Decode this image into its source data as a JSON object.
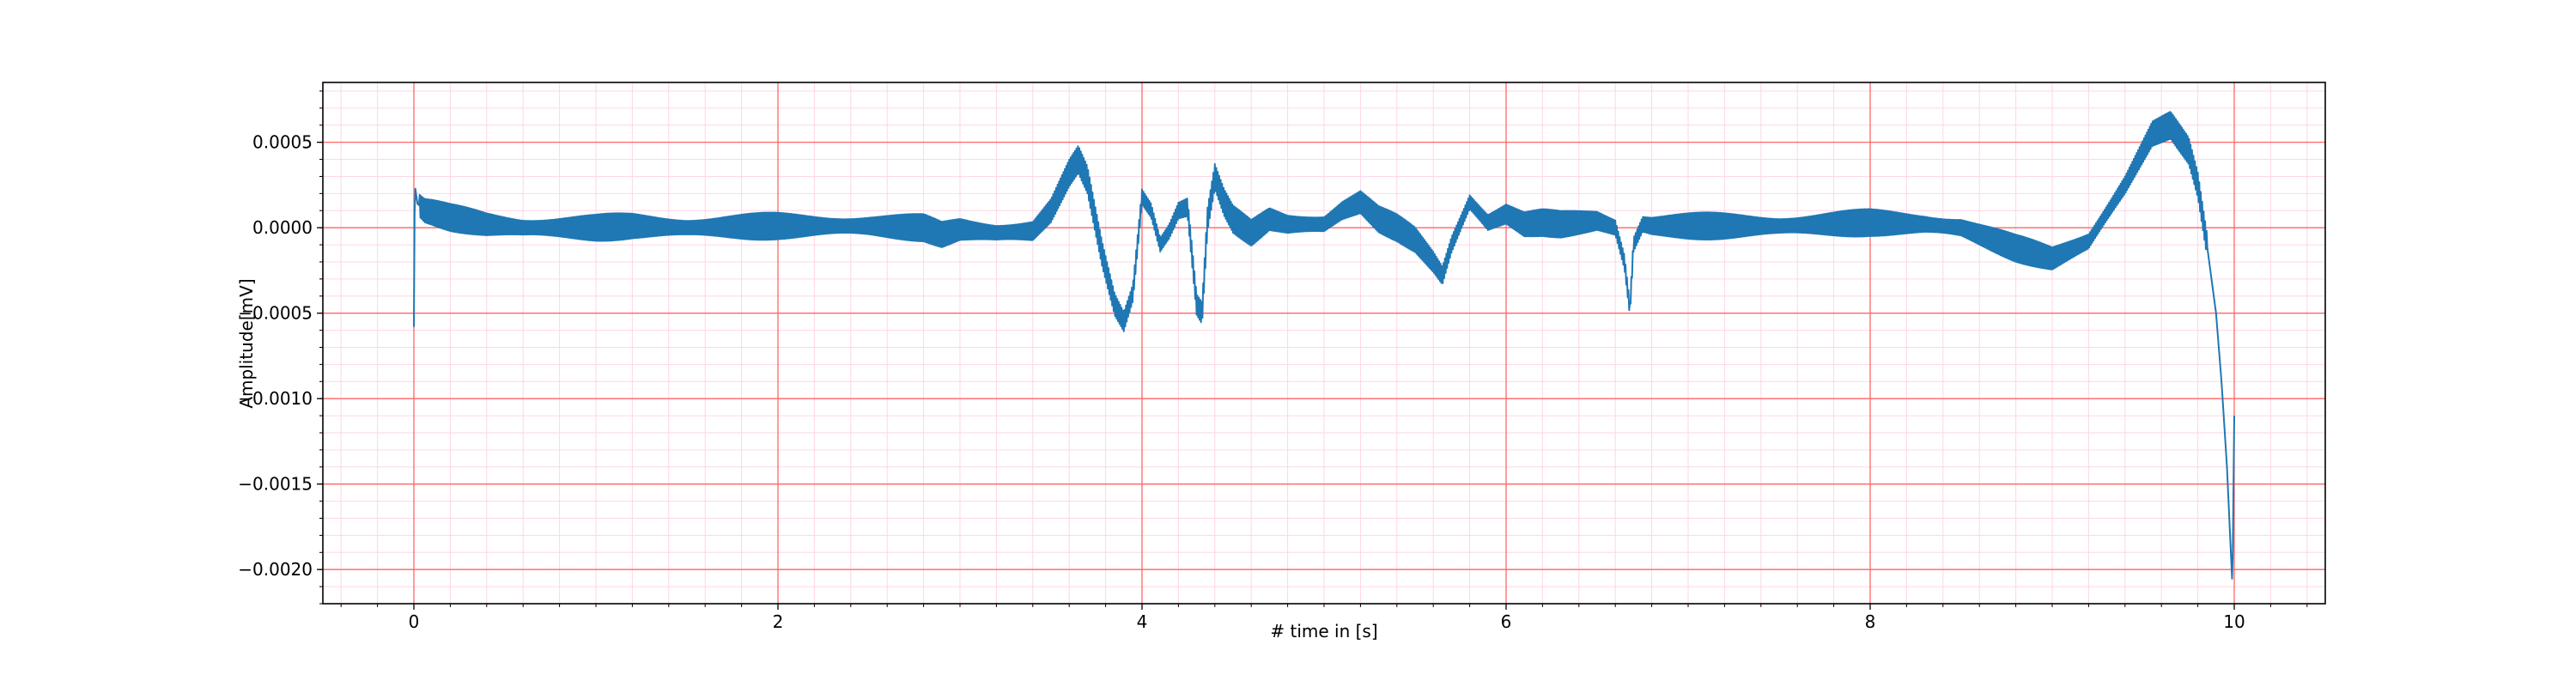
{
  "chart_data": {
    "type": "line",
    "title": "",
    "xlabel": "# time in [s]",
    "ylabel": "Amplitude[mV]",
    "xlim": [
      -0.5,
      10.5
    ],
    "ylim": [
      -0.0022,
      0.00085
    ],
    "x_ticks": [
      0,
      2,
      4,
      6,
      8,
      10
    ],
    "x_tick_labels": [
      "0",
      "2",
      "4",
      "6",
      "8",
      "10"
    ],
    "y_ticks": [
      0.0005,
      0.0,
      -0.0005,
      -0.001,
      -0.0015,
      -0.002
    ],
    "y_tick_labels": [
      "0.0005",
      "0.0000",
      "−0.0005",
      "−0.0010",
      "−0.0015",
      "−0.0020"
    ],
    "grid": {
      "major": true,
      "minor": true,
      "major_color": "#ff6666",
      "minor_color": "#ffd6e6"
    },
    "series": [
      {
        "color": "#1f77b4",
        "ripple_amplitude": 8e-05,
        "x": [
          0.0,
          0.005,
          0.02,
          0.06,
          0.1,
          0.2,
          0.4,
          0.6,
          0.8,
          1.0,
          1.2,
          1.5,
          2.0,
          2.5,
          2.8,
          2.9,
          3.0,
          3.2,
          3.4,
          3.5,
          3.6,
          3.65,
          3.7,
          3.78,
          3.85,
          3.9,
          3.95,
          4.0,
          4.05,
          4.1,
          4.15,
          4.2,
          4.25,
          4.3,
          4.33,
          4.36,
          4.4,
          4.45,
          4.5,
          4.6,
          4.7,
          4.8,
          4.9,
          5.0,
          5.1,
          5.2,
          5.3,
          5.4,
          5.5,
          5.6,
          5.65,
          5.7,
          5.8,
          5.9,
          6.0,
          6.1,
          6.2,
          6.3,
          6.5,
          6.6,
          6.65,
          6.68,
          6.7,
          6.75,
          6.8,
          7.0,
          7.5,
          8.0,
          8.3,
          8.5,
          8.8,
          9.0,
          9.2,
          9.4,
          9.55,
          9.65,
          9.75,
          9.8,
          9.85,
          9.9,
          9.93,
          9.96,
          9.99,
          10.0
        ],
        "y": [
          -0.00058,
          0.00025,
          0.00014,
          0.0001,
          9e-05,
          6e-05,
          2e-05,
          0.0,
          0.0,
          0.0,
          1e-05,
          0.0,
          1e-05,
          1e-05,
          0.0,
          -4e-05,
          -1e-05,
          -3e-05,
          -2e-05,
          0.0001,
          0.00032,
          0.0004,
          0.00028,
          -0.00015,
          -0.00045,
          -0.00055,
          -0.00038,
          0.00018,
          0.0001,
          -0.0001,
          -2e-05,
          0.0001,
          0.00012,
          -0.00045,
          -0.0005,
          5e-05,
          0.0003,
          0.00015,
          5e-05,
          -3e-05,
          5e-05,
          2e-05,
          2e-05,
          2e-05,
          0.0001,
          0.00015,
          5e-05,
          0.0,
          -7e-05,
          -0.0002,
          -0.00028,
          -0.0001,
          0.00015,
          3e-05,
          8e-05,
          2e-05,
          3e-05,
          2e-05,
          4e-05,
          0.0,
          -0.0002,
          -0.00048,
          -0.0001,
          2e-05,
          1e-05,
          1e-05,
          1e-05,
          3e-05,
          2e-05,
          0.0,
          -0.00012,
          -0.00018,
          -8e-05,
          0.00025,
          0.00055,
          0.0006,
          0.00045,
          0.00025,
          -0.0001,
          -0.0005,
          -0.0009,
          -0.0014,
          -0.0021,
          -0.0011
        ]
      }
    ]
  }
}
